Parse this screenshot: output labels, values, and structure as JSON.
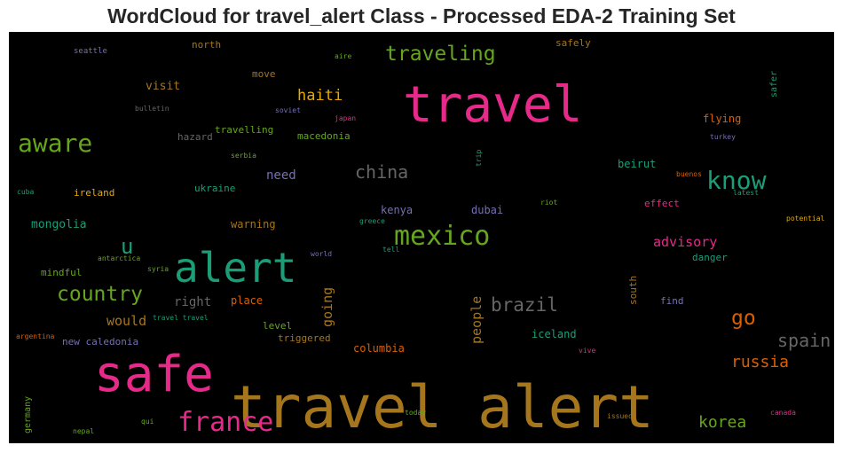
{
  "title": "WordCloud for travel_alert Class - Processed EDA-2 Training Set",
  "chart_data": {
    "type": "wordcloud",
    "title": "WordCloud for travel_alert Class - Processed EDA-2 Training Set",
    "background": "#000000",
    "colormap": "Dark2",
    "palette": {
      "pink": "#e7298a",
      "gold": "#a6761d",
      "teal": "#1b9e77",
      "green": "#66a61e",
      "orange": "#d95f02",
      "purple": "#7570b3",
      "mustard": "#e6ab02",
      "gray": "#666666"
    },
    "words": [
      {
        "text": "travel alert",
        "color": "gold"
      },
      {
        "text": "travel",
        "color": "pink"
      },
      {
        "text": "safe",
        "color": "pink"
      },
      {
        "text": "alert",
        "color": "teal"
      },
      {
        "text": "mexico",
        "color": "green"
      },
      {
        "text": "france",
        "color": "pink"
      },
      {
        "text": "aware",
        "color": "green"
      },
      {
        "text": "know",
        "color": "teal"
      },
      {
        "text": "traveling",
        "color": "green"
      },
      {
        "text": "country",
        "color": "green"
      },
      {
        "text": "go",
        "color": "orange"
      },
      {
        "text": "spain",
        "color": "gray"
      },
      {
        "text": "brazil",
        "color": "gray"
      },
      {
        "text": "china",
        "color": "gray"
      },
      {
        "text": "u",
        "color": "teal"
      },
      {
        "text": "russia",
        "color": "orange"
      },
      {
        "text": "korea",
        "color": "green"
      },
      {
        "text": "haiti",
        "color": "mustard"
      },
      {
        "text": "advisory",
        "color": "pink"
      },
      {
        "text": "people",
        "color": "gold"
      },
      {
        "text": "going",
        "color": "gold"
      },
      {
        "text": "would",
        "color": "gold"
      },
      {
        "text": "right",
        "color": "gray"
      },
      {
        "text": "need",
        "color": "purple"
      },
      {
        "text": "mongolia",
        "color": "teal"
      },
      {
        "text": "visit",
        "color": "gold"
      },
      {
        "text": "flying",
        "color": "orange"
      },
      {
        "text": "beirut",
        "color": "teal"
      },
      {
        "text": "place",
        "color": "orange"
      },
      {
        "text": "iceland",
        "color": "teal"
      },
      {
        "text": "columbia",
        "color": "orange"
      },
      {
        "text": "warning",
        "color": "gold"
      },
      {
        "text": "kenya",
        "color": "purple"
      },
      {
        "text": "dubai",
        "color": "purple"
      },
      {
        "text": "ukraine",
        "color": "teal"
      },
      {
        "text": "ireland",
        "color": "mustard"
      },
      {
        "text": "mindful",
        "color": "green"
      },
      {
        "text": "hazard",
        "color": "gray"
      },
      {
        "text": "travelling",
        "color": "green"
      },
      {
        "text": "macedonia",
        "color": "green"
      },
      {
        "text": "triggered",
        "color": "gold"
      },
      {
        "text": "level",
        "color": "green"
      },
      {
        "text": "danger",
        "color": "teal"
      },
      {
        "text": "effect",
        "color": "pink"
      },
      {
        "text": "find",
        "color": "purple"
      },
      {
        "text": "north",
        "color": "gold"
      },
      {
        "text": "move",
        "color": "gold"
      },
      {
        "text": "safely",
        "color": "gold"
      },
      {
        "text": "new caledonia",
        "color": "purple"
      },
      {
        "text": "south",
        "color": "gold"
      },
      {
        "text": "germany",
        "color": "green"
      },
      {
        "text": "safer",
        "color": "teal"
      },
      {
        "text": "seattle",
        "color": "purple"
      },
      {
        "text": "aire",
        "color": "green"
      },
      {
        "text": "bulletin",
        "color": "gray"
      },
      {
        "text": "soviet",
        "color": "purple"
      },
      {
        "text": "japan",
        "color": "pink"
      },
      {
        "text": "turkey",
        "color": "purple"
      },
      {
        "text": "serbia",
        "color": "green"
      },
      {
        "text": "trip",
        "color": "teal"
      },
      {
        "text": "buenos",
        "color": "orange"
      },
      {
        "text": "latest",
        "color": "teal"
      },
      {
        "text": "cuba",
        "color": "teal"
      },
      {
        "text": "riot",
        "color": "green"
      },
      {
        "text": "potential",
        "color": "mustard"
      },
      {
        "text": "greece",
        "color": "teal"
      },
      {
        "text": "tell",
        "color": "teal"
      },
      {
        "text": "antarctica",
        "color": "green"
      },
      {
        "text": "syria",
        "color": "green"
      },
      {
        "text": "world",
        "color": "purple"
      },
      {
        "text": "travel travel",
        "color": "teal"
      },
      {
        "text": "argentina",
        "color": "orange"
      },
      {
        "text": "vive",
        "color": "pink"
      },
      {
        "text": "qui",
        "color": "green"
      },
      {
        "text": "today",
        "color": "green"
      },
      {
        "text": "issued",
        "color": "gold"
      },
      {
        "text": "canada",
        "color": "pink"
      },
      {
        "text": "nepal",
        "color": "green"
      }
    ]
  }
}
